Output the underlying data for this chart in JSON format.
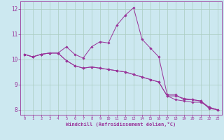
{
  "xlabel": "Windchill (Refroidissement éolien,°C)",
  "background_color": "#cce8f0",
  "grid_color": "#aaccc0",
  "line_color": "#993399",
  "xlim": [
    -0.5,
    23.5
  ],
  "ylim": [
    7.8,
    12.3
  ],
  "xticks": [
    0,
    1,
    2,
    3,
    4,
    5,
    6,
    7,
    8,
    9,
    10,
    11,
    12,
    13,
    14,
    15,
    16,
    17,
    18,
    19,
    20,
    21,
    22,
    23
  ],
  "yticks": [
    8,
    9,
    10,
    11,
    12
  ],
  "series1": [
    10.2,
    10.1,
    10.2,
    10.25,
    10.25,
    10.5,
    10.2,
    10.05,
    10.5,
    10.7,
    10.65,
    11.35,
    11.75,
    12.05,
    10.8,
    10.45,
    10.1,
    8.6,
    8.6,
    8.4,
    8.4,
    8.35,
    8.05,
    8.0
  ],
  "series2": [
    10.2,
    10.1,
    10.2,
    10.25,
    10.25,
    9.95,
    9.75,
    9.65,
    9.7,
    9.65,
    9.6,
    9.55,
    9.5,
    9.4,
    9.3,
    9.2,
    9.1,
    8.55,
    8.55,
    8.45,
    8.4,
    8.35,
    8.1,
    8.0
  ],
  "series3": [
    10.2,
    10.1,
    10.2,
    10.25,
    10.25,
    9.95,
    9.75,
    9.65,
    9.7,
    9.65,
    9.6,
    9.55,
    9.5,
    9.4,
    9.3,
    9.2,
    9.1,
    8.55,
    8.4,
    8.35,
    8.3,
    8.3,
    8.1,
    8.0
  ]
}
